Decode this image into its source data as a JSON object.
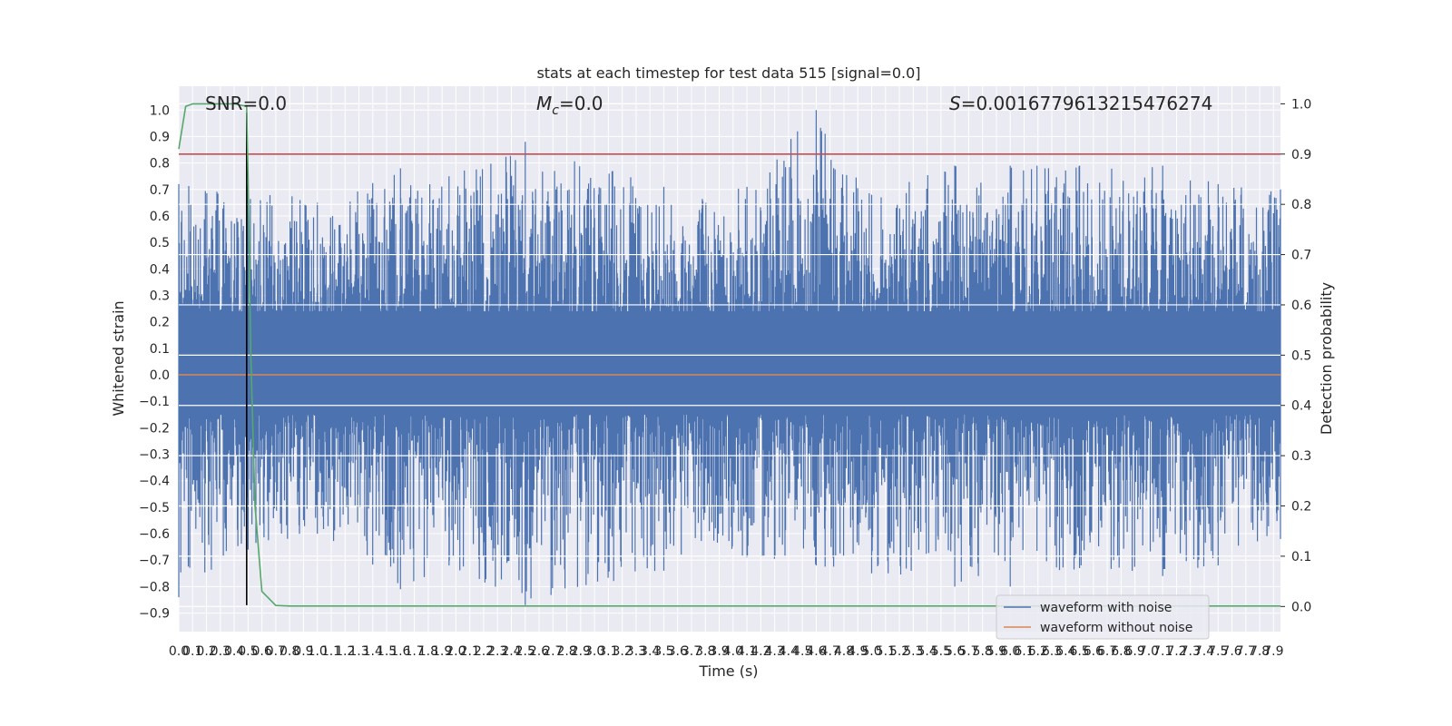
{
  "chart_data": {
    "type": "line",
    "title": "stats at each timestep for test data 515 [signal=0.0]",
    "xlabel": "Time (s)",
    "ylabel": "Whitened strain",
    "y2label": "Detection probability",
    "xlim": [
      0.0,
      7.95
    ],
    "ylim": [
      -0.97,
      1.09
    ],
    "y2lim": [
      -0.05,
      1.035
    ],
    "x_ticks": [
      0.0,
      0.1,
      0.2,
      0.3,
      0.4,
      0.5,
      0.6,
      0.7,
      0.8,
      0.9,
      1.0,
      1.1,
      1.2,
      1.3,
      1.4,
      1.5,
      1.6,
      1.7,
      1.8,
      1.9,
      2.0,
      2.1,
      2.2,
      2.3,
      2.4,
      2.5,
      2.6,
      2.7,
      2.8,
      2.9,
      3.0,
      3.1,
      3.2,
      3.3,
      3.4,
      3.5,
      3.6,
      3.7,
      3.8,
      3.9,
      4.0,
      4.1,
      4.2,
      4.3,
      4.4,
      4.5,
      4.6,
      4.7,
      4.8,
      4.9,
      5.0,
      5.1,
      5.2,
      5.3,
      5.4,
      5.5,
      5.6,
      5.7,
      5.8,
      5.9,
      6.0,
      6.1,
      6.2,
      6.3,
      6.4,
      6.5,
      6.6,
      6.7,
      6.8,
      6.9,
      7.0,
      7.1,
      7.2,
      7.3,
      7.4,
      7.5,
      7.6,
      7.7,
      7.8,
      7.9
    ],
    "y_ticks": [
      1.0,
      0.9,
      0.8,
      0.7,
      0.6,
      0.5,
      0.4,
      0.3,
      0.2,
      0.1,
      0.0,
      -0.1,
      -0.2,
      -0.3,
      -0.4,
      -0.5,
      -0.6,
      -0.7,
      -0.8,
      -0.9
    ],
    "y2_ticks": [
      1.0,
      0.9,
      0.8,
      0.7,
      0.6,
      0.5,
      0.4,
      0.3,
      0.2,
      0.1,
      0.0
    ],
    "y_tick_labels": [
      "1.0",
      "0.9",
      "0.8",
      "0.7",
      "0.6",
      "0.5",
      "0.4",
      "0.3",
      "0.2",
      "0.1",
      "0.0",
      "−0.1",
      "−0.2",
      "−0.3",
      "−0.4",
      "−0.5",
      "−0.6",
      "−0.7",
      "−0.8",
      "−0.9"
    ],
    "annotations": {
      "snr": "SNR=0.0",
      "mc_symbol": "M",
      "mc_sub": "c",
      "mc_value": "=0.0",
      "s_symbol": "S",
      "s_value": "=0.0016779613215476274"
    },
    "series": [
      {
        "name": "waveform with noise",
        "color": "#4c72b0",
        "kind": "noise",
        "envelope": [
          [
            0.0,
            0.72,
            -0.84
          ],
          [
            0.5,
            0.72,
            -0.66
          ],
          [
            1.0,
            0.65,
            -0.6
          ],
          [
            1.6,
            0.78,
            -0.81
          ],
          [
            1.95,
            0.75,
            -0.72
          ],
          [
            2.5,
            0.88,
            -0.87
          ],
          [
            3.5,
            0.71,
            -0.74
          ],
          [
            4.1,
            0.71,
            -0.69
          ],
          [
            4.6,
            1.0,
            -0.72
          ],
          [
            5.0,
            0.68,
            -0.75
          ],
          [
            5.6,
            0.79,
            -0.8
          ],
          [
            6.0,
            0.79,
            -0.8
          ],
          [
            6.5,
            0.79,
            -0.73
          ],
          [
            7.1,
            0.79,
            -0.76
          ],
          [
            7.5,
            0.72,
            -0.72
          ],
          [
            7.95,
            0.7,
            -0.62
          ]
        ]
      },
      {
        "name": "waveform without noise",
        "color": "#dd8452",
        "x": [
          0.0,
          7.95
        ],
        "y": [
          0.0,
          0.0
        ]
      },
      {
        "color": "#55a868",
        "axis": "y2",
        "x": [
          0.0,
          0.05,
          0.1,
          0.2,
          0.3,
          0.4,
          0.49,
          0.5,
          0.52,
          0.55,
          0.6,
          0.7,
          0.8,
          1.0,
          3.0,
          6.0,
          7.95
        ],
        "y": [
          0.91,
          0.995,
          1.0,
          1.0,
          1.0,
          1.0,
          0.995,
          0.85,
          0.5,
          0.2,
          0.03,
          0.002,
          0.001,
          0.001,
          0.001,
          0.001,
          0.001
        ]
      }
    ],
    "threshold": {
      "axis": "y2",
      "value": 0.9,
      "color": "#c44e52"
    },
    "marker": {
      "x": 0.49,
      "ylim": [
        -0.87,
        0.99
      ],
      "color": "#000000"
    },
    "grid": true,
    "legend": "lower right"
  }
}
